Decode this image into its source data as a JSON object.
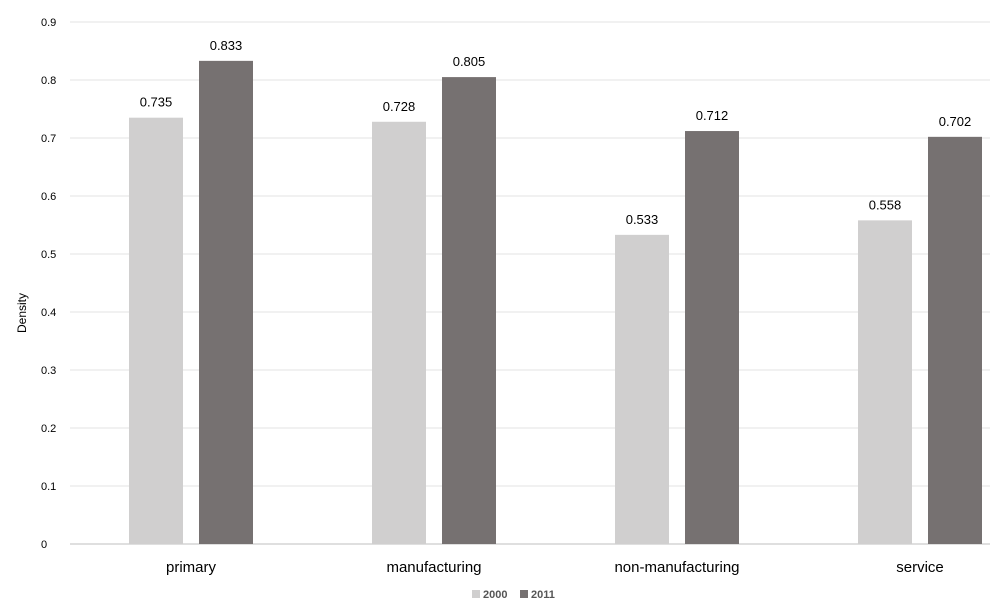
{
  "chart_data": {
    "type": "bar",
    "categories": [
      "primary",
      "manufacturing",
      "non-manufacturing",
      "service"
    ],
    "series": [
      {
        "name": "2000",
        "color": "#d0cfcf",
        "values": [
          0.735,
          0.728,
          0.533,
          0.558
        ]
      },
      {
        "name": "2011",
        "color": "#767171",
        "values": [
          0.833,
          0.805,
          0.712,
          0.702
        ]
      }
    ],
    "data_labels": [
      [
        "0.735",
        "0.728",
        "0.533",
        "0.558"
      ],
      [
        "0.833",
        "0.805",
        "0.712",
        "0.702"
      ]
    ],
    "ylabel": "Density",
    "ylim": [
      0,
      0.9
    ],
    "yticks": [
      0,
      0.1,
      0.2,
      0.3,
      0.4,
      0.5,
      0.6,
      0.7,
      0.8,
      0.9
    ],
    "ytick_labels": [
      "0",
      "0.1",
      "0.2",
      "0.3",
      "0.4",
      "0.5",
      "0.6",
      "0.7",
      "0.8",
      "0.9"
    ],
    "grid": true,
    "legend_position": "bottom-center"
  }
}
